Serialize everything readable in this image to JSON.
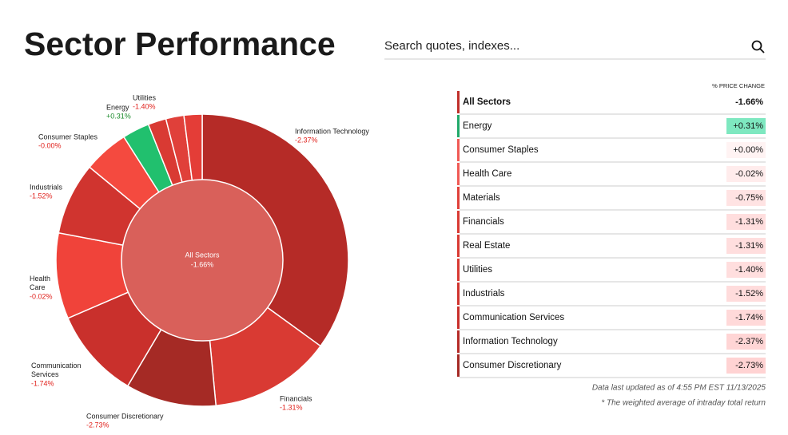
{
  "header": {
    "title": "Sector Performance",
    "search_placeholder": "Search quotes, indexes..."
  },
  "donut": {
    "center_name": "All Sectors",
    "center_change": "-1.66%",
    "center_color": "#d9605a",
    "segments": [
      {
        "name": "Information Technology",
        "change": "-2.37%",
        "weight": 35,
        "color": "#b52b27",
        "change_color": "#e0201b"
      },
      {
        "name": "Financials",
        "change": "-1.31%",
        "weight": 13.5,
        "color": "#d93a33",
        "change_color": "#e0201b"
      },
      {
        "name": "Consumer Discretionary",
        "change": "-2.73%",
        "weight": 10,
        "color": "#a52a25",
        "change_color": "#e0201b"
      },
      {
        "name": "Communication Services",
        "change": "-1.74%",
        "weight": 10,
        "color": "#c9302c",
        "change_color": "#e0201b"
      },
      {
        "name": "Health Care",
        "change": "-0.02%",
        "weight": 9.5,
        "color": "#f0433a",
        "change_color": "#e0201b"
      },
      {
        "name": "Industrials",
        "change": "-1.52%",
        "weight": 8,
        "color": "#d0342f",
        "change_color": "#e0201b"
      },
      {
        "name": "Consumer Staples",
        "change": "-0.00%",
        "weight": 5,
        "color": "#f44a3f",
        "change_color": "#e0201b"
      },
      {
        "name": "Energy",
        "change": "+0.31%",
        "weight": 3,
        "color": "#21c06e",
        "change_color": "#1a8a2b"
      },
      {
        "name": "Utilities",
        "change": "-1.40%",
        "weight": 2,
        "color": "#d93a33",
        "change_color": "#e0201b"
      },
      {
        "name": null,
        "change": null,
        "weight": 2,
        "color": "#e0403a",
        "change_color": null
      },
      {
        "name": null,
        "change": null,
        "weight": 2,
        "color": "#e43d37",
        "change_color": null
      }
    ]
  },
  "table": {
    "column_header": "% PRICE CHANGE",
    "rows": [
      {
        "name": "All Sectors",
        "change": "-1.66%",
        "bar_color": "#c0302b",
        "badge_color": "#ffffff"
      },
      {
        "name": "Energy",
        "change": "+0.31%",
        "bar_color": "#21a96a",
        "badge_color": "#7ee8c0"
      },
      {
        "name": "Consumer Staples",
        "change": "+0.00%",
        "bar_color": "#f05a55",
        "badge_color": "#fff3f3"
      },
      {
        "name": "Health Care",
        "change": "-0.02%",
        "bar_color": "#f05a55",
        "badge_color": "#ffecec"
      },
      {
        "name": "Materials",
        "change": "-0.75%",
        "bar_color": "#e0403a",
        "badge_color": "#ffe3e3"
      },
      {
        "name": "Financials",
        "change": "-1.31%",
        "bar_color": "#d93a33",
        "badge_color": "#ffdede"
      },
      {
        "name": "Real Estate",
        "change": "-1.31%",
        "bar_color": "#d93a33",
        "badge_color": "#ffdede"
      },
      {
        "name": "Utilities",
        "change": "-1.40%",
        "bar_color": "#d93a33",
        "badge_color": "#ffdede"
      },
      {
        "name": "Industrials",
        "change": "-1.52%",
        "bar_color": "#d0342f",
        "badge_color": "#ffdcdc"
      },
      {
        "name": "Communication Services",
        "change": "-1.74%",
        "bar_color": "#c9302c",
        "badge_color": "#ffd9d9"
      },
      {
        "name": "Information Technology",
        "change": "-2.37%",
        "bar_color": "#b52b27",
        "badge_color": "#ffd5d5"
      },
      {
        "name": "Consumer Discretionary",
        "change": "-2.73%",
        "bar_color": "#a52a25",
        "badge_color": "#ffd3d3"
      }
    ]
  },
  "footer": {
    "updated": "Data last updated as of 4:55 PM EST 11/13/2025",
    "note": "* The weighted average of intraday total return"
  }
}
